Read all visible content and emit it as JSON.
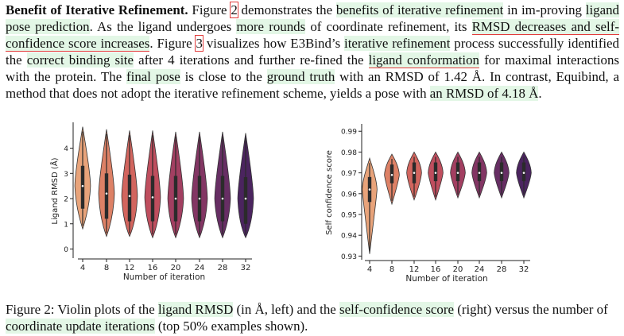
{
  "paragraph": {
    "runs": [
      {
        "text": "Benefit of Iterative Refinement.",
        "style": "bold"
      },
      {
        "text": " Figure ",
        "style": ""
      },
      {
        "text": "2",
        "style": "box"
      },
      {
        "text": " demonstrates the ",
        "style": ""
      },
      {
        "text": "benefits of iterative refinement",
        "style": "hl"
      },
      {
        "text": " in im-proving ",
        "style": ""
      },
      {
        "text": "ligand pose prediction",
        "style": "hl"
      },
      {
        "text": ". As the ligand undergoes ",
        "style": ""
      },
      {
        "text": "more rounds",
        "style": "hl"
      },
      {
        "text": " of coordinate refinement, its ",
        "style": ""
      },
      {
        "text": "RMSD decreases and self-confidence score increases",
        "style": "hl ul"
      },
      {
        "text": ". Figure ",
        "style": ""
      },
      {
        "text": "3",
        "style": "box"
      },
      {
        "text": " visualizes how E3Bind’s ",
        "style": ""
      },
      {
        "text": "iterative refinement",
        "style": "hl"
      },
      {
        "text": " process successfully identified the ",
        "style": ""
      },
      {
        "text": "correct binding site",
        "style": "hl"
      },
      {
        "text": " after 4 iterations and further re-fined the ",
        "style": ""
      },
      {
        "text": "ligand conformation",
        "style": "hl ul"
      },
      {
        "text": " for maximal interactions with the protein. The ",
        "style": ""
      },
      {
        "text": "final pose",
        "style": "hl"
      },
      {
        "text": " is close to the ",
        "style": ""
      },
      {
        "text": "ground truth",
        "style": "hl"
      },
      {
        "text": " with an RMSD of 1.42 Å. In contrast, Equibind, a method that does not adopt the iterative refinement scheme, yields a pose with ",
        "style": ""
      },
      {
        "text": "an RMSD of 4.18 Å",
        "style": "hl"
      },
      {
        "text": ".",
        "style": ""
      }
    ]
  },
  "colors": {
    "highlight": "#e3f7e6",
    "underline": "#e23b3b",
    "violins": [
      "#e8a37a",
      "#dd8166",
      "#d2655e",
      "#bf4e5e",
      "#a23f61",
      "#833664",
      "#672e64",
      "#4b245f"
    ],
    "box": "#2b2b2b",
    "median": "#ffffff"
  },
  "chart_data": [
    {
      "type": "violin",
      "title": "",
      "xlabel": "Number of iteration",
      "ylabel": "Ligand RMSD (Å)",
      "x": [
        "4",
        "8",
        "12",
        "16",
        "20",
        "24",
        "28",
        "32"
      ],
      "yticks": [
        "0",
        "1",
        "2",
        "3",
        "4"
      ],
      "ylim": [
        -0.3,
        4.9
      ],
      "median": [
        2.5,
        2.2,
        2.1,
        2.05,
        2.0,
        2.0,
        2.0,
        2.0
      ],
      "q1": [
        1.6,
        1.2,
        1.1,
        1.1,
        1.1,
        1.1,
        1.1,
        1.0
      ],
      "q3": [
        3.3,
        3.0,
        2.95,
        2.9,
        2.9,
        2.9,
        2.9,
        2.85
      ],
      "min": [
        0.8,
        0.5,
        0.5,
        0.45,
        0.45,
        0.45,
        0.45,
        0.45
      ],
      "max": [
        4.85,
        4.75,
        4.7,
        4.7,
        4.65,
        4.65,
        4.65,
        4.6
      ],
      "grid": false
    },
    {
      "type": "violin",
      "title": "",
      "xlabel": "Number of iteration",
      "ylabel": "Self confidence score",
      "x": [
        "4",
        "8",
        "12",
        "16",
        "20",
        "24",
        "28",
        "32"
      ],
      "yticks": [
        "0.93",
        "0.94",
        "0.95",
        "0.96",
        "0.97",
        "0.98",
        "0.99"
      ],
      "ylim": [
        0.929,
        0.992
      ],
      "median": [
        0.962,
        0.969,
        0.97,
        0.97,
        0.97,
        0.97,
        0.97,
        0.97
      ],
      "q1": [
        0.956,
        0.965,
        0.965,
        0.966,
        0.966,
        0.966,
        0.966,
        0.966
      ],
      "q3": [
        0.968,
        0.974,
        0.975,
        0.975,
        0.975,
        0.975,
        0.975,
        0.975
      ],
      "min": [
        0.931,
        0.955,
        0.957,
        0.957,
        0.958,
        0.958,
        0.958,
        0.958
      ],
      "max": [
        0.977,
        0.979,
        0.98,
        0.98,
        0.98,
        0.98,
        0.98,
        0.98
      ],
      "grid": false
    }
  ],
  "caption": {
    "runs": [
      {
        "text": "Figure 2: Violin plots of the ",
        "style": ""
      },
      {
        "text": "ligand RMSD",
        "style": "hl"
      },
      {
        "text": " (in Å, left) and the ",
        "style": ""
      },
      {
        "text": "self-confidence score",
        "style": "hl"
      },
      {
        "text": " (right) versus the number of ",
        "style": ""
      },
      {
        "text": "coordinate update iterations",
        "style": "hl"
      },
      {
        "text": " (top 50% examples shown).",
        "style": ""
      }
    ]
  }
}
